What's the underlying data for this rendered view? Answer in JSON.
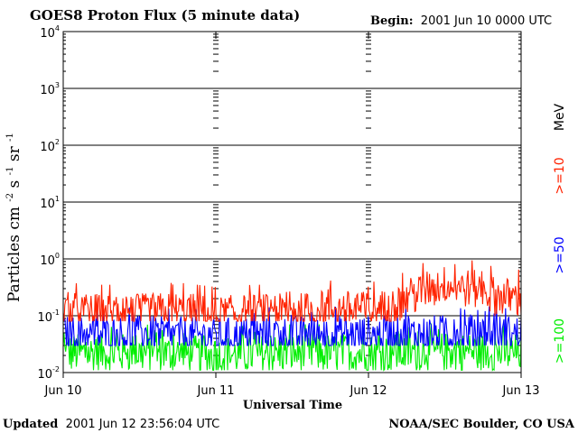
{
  "chart_data": {
    "type": "line",
    "title": "GOES8 Proton Flux (5 minute data)",
    "begin_label": "Begin:",
    "begin_value": "2001 Jun 10 0000 UTC",
    "ylabel": "Particles cm",
    "ylabel_units": [
      "-2",
      "s",
      "-1",
      "sr",
      "-1"
    ],
    "xlabel": "Universal Time",
    "y_scale": "log",
    "ylim": [
      0.01,
      10000
    ],
    "yticks": [
      {
        "base": "10",
        "exp": "-2",
        "value": 0.01
      },
      {
        "base": "10",
        "exp": "-1",
        "value": 0.1
      },
      {
        "base": "10",
        "exp": "0",
        "value": 1
      },
      {
        "base": "10",
        "exp": "1",
        "value": 10
      },
      {
        "base": "10",
        "exp": "2",
        "value": 100
      },
      {
        "base": "10",
        "exp": "3",
        "value": 1000
      },
      {
        "base": "10",
        "exp": "4",
        "value": 10000
      }
    ],
    "x_range": [
      "2001-06-10 00:00 UTC",
      "2001-06-13 00:00 UTC"
    ],
    "xticks": [
      "Jun 10",
      "Jun 11",
      "Jun 12",
      "Jun 13"
    ],
    "grid": true,
    "unit_label": "MeV",
    "series": [
      {
        "name": ">=10",
        "color": "#ff2200",
        "x": [
          "2001-06-10 00:00",
          "2001-06-10 06:00",
          "2001-06-10 12:00",
          "2001-06-10 18:00",
          "2001-06-11 00:00",
          "2001-06-11 06:00",
          "2001-06-11 12:00",
          "2001-06-11 18:00",
          "2001-06-12 00:00",
          "2001-06-12 04:00",
          "2001-06-12 08:00",
          "2001-06-12 12:00",
          "2001-06-12 16:00",
          "2001-06-12 20:00",
          "2001-06-13 00:00"
        ],
        "values": [
          0.12,
          0.11,
          0.11,
          0.12,
          0.1,
          0.11,
          0.11,
          0.13,
          0.12,
          0.14,
          0.25,
          0.35,
          0.3,
          0.22,
          0.2
        ],
        "noise_range": [
          0.08,
          0.3
        ]
      },
      {
        "name": ">=50",
        "color": "#0000ff",
        "x": [
          "2001-06-10 00:00",
          "2001-06-10 12:00",
          "2001-06-11 00:00",
          "2001-06-11 12:00",
          "2001-06-12 00:00",
          "2001-06-12 12:00",
          "2001-06-13 00:00"
        ],
        "values": [
          0.045,
          0.045,
          0.042,
          0.045,
          0.045,
          0.047,
          0.046
        ],
        "noise_range": [
          0.03,
          0.09
        ]
      },
      {
        "name": ">=100",
        "color": "#00ee00",
        "x": [
          "2001-06-10 00:00",
          "2001-06-10 12:00",
          "2001-06-11 00:00",
          "2001-06-11 12:00",
          "2001-06-12 00:00",
          "2001-06-12 12:00",
          "2001-06-13 00:00"
        ],
        "values": [
          0.022,
          0.022,
          0.02,
          0.022,
          0.022,
          0.023,
          0.022
        ],
        "noise_range": [
          0.011,
          0.045
        ]
      }
    ]
  },
  "footer": {
    "updated_label": "Updated",
    "updated_value": "2001 Jun 12 23:56:04 UTC",
    "credit": "NOAA/SEC Boulder, CO USA"
  }
}
